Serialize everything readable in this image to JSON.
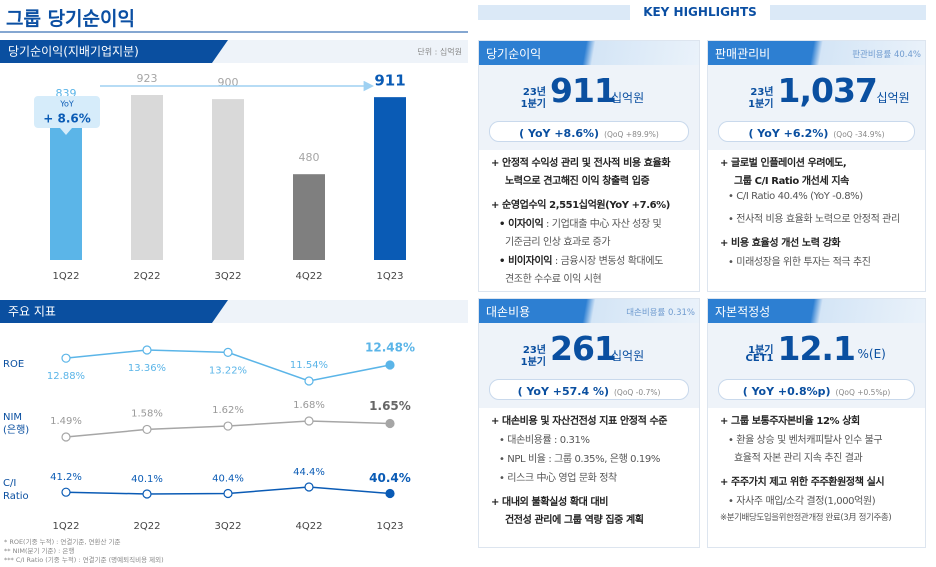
{
  "title": "그룹 당기순이익",
  "chart_data": [
    {
      "type": "bar",
      "title": "당기순이익(지배기업지분)",
      "unit_note": "단위 : 십억원",
      "categories": [
        "1Q22",
        "2Q22",
        "3Q22",
        "4Q22",
        "1Q23"
      ],
      "values": [
        839,
        923,
        900,
        480,
        911
      ],
      "colors": [
        "#5bb5e8",
        "#d9d9d9",
        "#d9d9d9",
        "#7f7f7f",
        "#0a5bb5"
      ],
      "annotation": {
        "label": "YoY",
        "text": "+ 8.6%"
      }
    },
    {
      "type": "line",
      "title": "주요 지표",
      "categories": [
        "1Q22",
        "2Q22",
        "3Q22",
        "4Q22",
        "1Q23"
      ],
      "series": [
        {
          "name": "ROE",
          "color": "#5bb5e8",
          "values": [
            12.88,
            13.36,
            13.22,
            11.54,
            12.48
          ],
          "value_labels": [
            "12.88%",
            "13.36%",
            "13.22%",
            "11.54%",
            "12.48%"
          ]
        },
        {
          "name": "NIM (은행)",
          "color": "#a6a6a6",
          "values": [
            1.49,
            1.58,
            1.62,
            1.68,
            1.65
          ],
          "value_labels": [
            "1.49%",
            "1.58%",
            "1.62%",
            "1.68%",
            "1.65%"
          ]
        },
        {
          "name": "C/I Ratio",
          "color": "#0a5bb5",
          "values": [
            41.2,
            40.1,
            40.4,
            44.4,
            40.4
          ],
          "value_labels": [
            "41.2%",
            "40.1%",
            "40.4%",
            "44.4%",
            "40.4%"
          ]
        }
      ],
      "footnotes": [
        "* ROE(기중 누적) : 연결기준, 연환산 기준",
        "** NIM(분기 기준) : 은행",
        "*** C/I Ratio (기중 누적) : 연결기준 (명예퇴직비용 제외)"
      ]
    }
  ],
  "key_highlights": {
    "title": "KEY HIGHLIGHTS",
    "panels": [
      {
        "title": "당기순이익",
        "period": [
          "23년",
          "1분기"
        ],
        "value": "911",
        "unit": "십억원",
        "yoy": "( YoY +8.6%)",
        "qoq": "(QoQ +89.9%)",
        "bullets": [
          {
            "lines": [
              "+ 안정적 수익성 관리 및 전사적 비용 효율화",
              "노력으로 견고해진 이익 창출력 입증"
            ]
          },
          {
            "lines": [
              "+ 순영업수익 2,551십억원(YoY +7.6%)"
            ]
          },
          {
            "label": "• 이자이익",
            "lines": [
              " : 기업대출 中心 자산 성장 및",
              "기준금리 인상 효과로 증가"
            ]
          },
          {
            "label": "• 비이자이익",
            "lines": [
              " : 금융시장 변동성 확대에도",
              "견조한 수수료 이익 시현"
            ]
          }
        ]
      },
      {
        "title": "판매관리비",
        "note": "판관비용률 40.4%",
        "period": [
          "23년",
          "1분기"
        ],
        "value": "1,037",
        "unit": "십억원",
        "yoy": "( YoY +6.2%)",
        "qoq": "(QoQ -34.9%)",
        "bullets": [
          {
            "lines": [
              "+ 글로벌 인플레이션 우려에도,",
              "그룹 C/I Ratio 개선세 지속"
            ]
          },
          {
            "lines": [
              "• C/I Ratio 40.4% (YoY -0.8%)"
            ]
          },
          {
            "lines": [
              "• 전사적 비용 효율화 노력으로 안정적 관리"
            ]
          },
          {
            "lines": [
              "+ 비용 효율성 개선 노력 강화"
            ]
          },
          {
            "lines": [
              "• 미래성장을 위한 투자는 적극 추진"
            ]
          }
        ]
      },
      {
        "title": "대손비용",
        "note": "대손비용률 0.31%",
        "period": [
          "23년",
          "1분기"
        ],
        "value": "261",
        "unit": "십억원",
        "yoy": "( YoY +57.4 %)",
        "qoq": "(QoQ -0.7%)",
        "bullets": [
          {
            "lines": [
              "+ 대손비용 및 자산건전성 지표 안정적 수준"
            ]
          },
          {
            "lines": [
              "• 대손비용률 : 0.31%"
            ]
          },
          {
            "lines": [
              "• NPL 비율 : 그룹 0.35%, 은행 0.19%"
            ]
          },
          {
            "lines": [
              "• 리스크 中心 영업 문화 정착"
            ]
          },
          {
            "lines": [
              "+ 대내외 불확실성 확대 대비",
              "건전성 관리에 그룹 역량 집중 계획"
            ]
          }
        ]
      },
      {
        "title": "자본적정성",
        "period": [
          "1분기",
          "CET1"
        ],
        "value": "12.1",
        "unit": "%(E)",
        "yoy": "( YoY +0.8%p)",
        "qoq": "(QoQ +0.5%p)",
        "bullets": [
          {
            "lines": [
              "+ 그룹 보통주자본비율 12% 상회"
            ]
          },
          {
            "lines": [
              "• 환율 상승 및 벤처캐피탈사 인수 불구",
              "효율적 자본 관리 지속 추진 결과"
            ]
          },
          {
            "lines": [
              "+ 주주가치 제고 위한 주주환원정책 실시"
            ]
          },
          {
            "lines": [
              "• 자사주 매입/소각 결정(1,000억원)"
            ]
          },
          {
            "lines": [
              "※분기배당도입을위한정관개정 완료(3月 정기주총)"
            ]
          }
        ]
      }
    ]
  }
}
